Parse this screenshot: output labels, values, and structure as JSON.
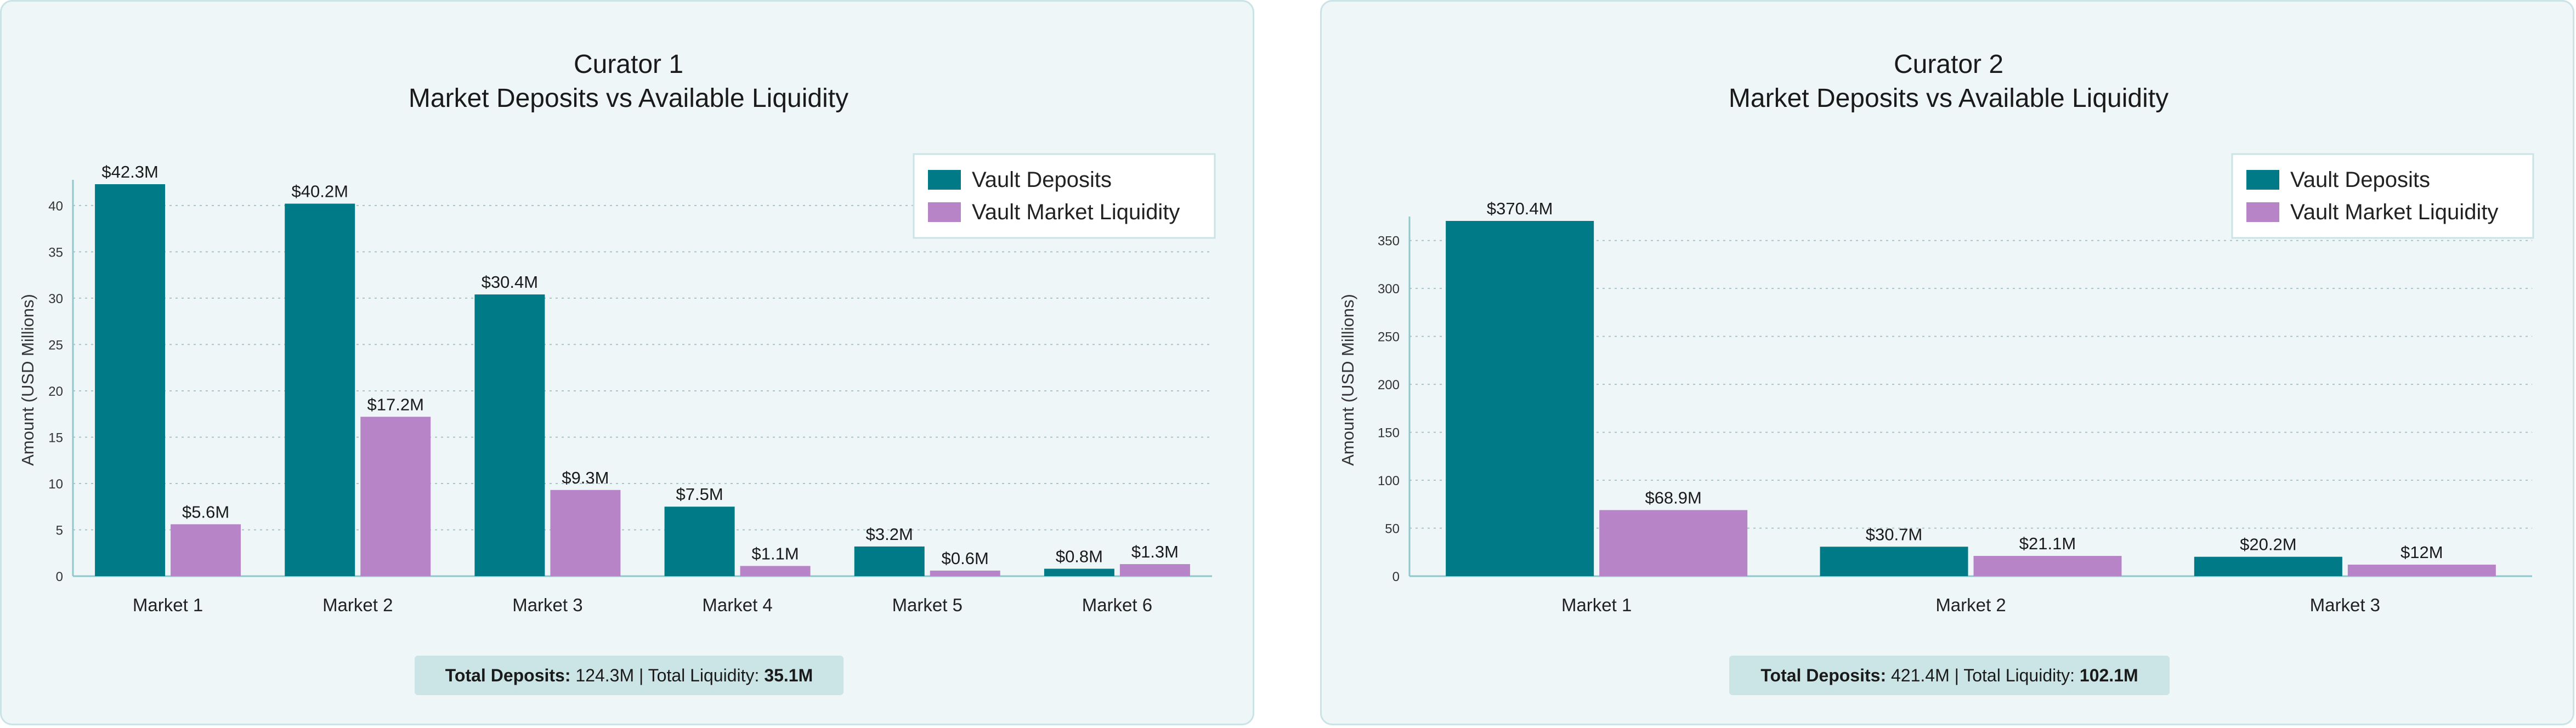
{
  "colors": {
    "deposits": "#007a87",
    "liquidity": "#b784c8",
    "grid": "#a9c4c8",
    "axis": "#8fc7cc"
  },
  "chart_data": [
    {
      "type": "bar",
      "title": "Curator 1",
      "subtitle": "Market Deposits vs Available Liquidity",
      "ylabel": "Amount (USD Millions)",
      "xlabel": "",
      "ylim": [
        0,
        42.3
      ],
      "yticks": [
        0,
        5,
        10,
        15,
        20,
        25,
        30,
        35,
        40
      ],
      "grid": true,
      "legend_position": "top-right",
      "categories": [
        "Market 1",
        "Market 2",
        "Market 3",
        "Market 4",
        "Market 5",
        "Market 6"
      ],
      "series": [
        {
          "name": "Vault Deposits",
          "values": [
            42.3,
            40.2,
            30.4,
            7.5,
            3.2,
            0.8
          ],
          "labels": [
            "$42.3M",
            "$40.2M",
            "$30.4M",
            "$7.5M",
            "$3.2M",
            "$0.8M"
          ]
        },
        {
          "name": "Vault Market Liquidity",
          "values": [
            5.6,
            17.2,
            9.3,
            1.1,
            0.6,
            1.3
          ],
          "labels": [
            "$5.6M",
            "$17.2M",
            "$9.3M",
            "$1.1M",
            "$0.6M",
            "$1.3M"
          ]
        }
      ],
      "summary": {
        "deposits_label": "Total Deposits:",
        "deposits_value": " 124.3M | Total Liquidity: ",
        "liquidity_value": "35.1M"
      }
    },
    {
      "type": "bar",
      "title": "Curator 2",
      "subtitle": "Market Deposits vs Available Liquidity",
      "ylabel": "Amount (USD Millions)",
      "xlabel": "",
      "ylim": [
        0,
        370.4
      ],
      "yticks": [
        0,
        50,
        100,
        150,
        200,
        250,
        300,
        350
      ],
      "grid": true,
      "legend_position": "top-right",
      "categories": [
        "Market 1",
        "Market 2",
        "Market 3"
      ],
      "series": [
        {
          "name": "Vault Deposits",
          "values": [
            370.4,
            30.7,
            20.2
          ],
          "labels": [
            "$370.4M",
            "$30.7M",
            "$20.2M"
          ]
        },
        {
          "name": "Vault Market Liquidity",
          "values": [
            68.9,
            21.1,
            12
          ],
          "labels": [
            "$68.9M",
            "$21.1M",
            "$12M"
          ]
        }
      ],
      "summary": {
        "deposits_label": "Total Deposits:",
        "deposits_value": " 421.4M | Total Liquidity: ",
        "liquidity_value": "102.1M"
      }
    }
  ]
}
